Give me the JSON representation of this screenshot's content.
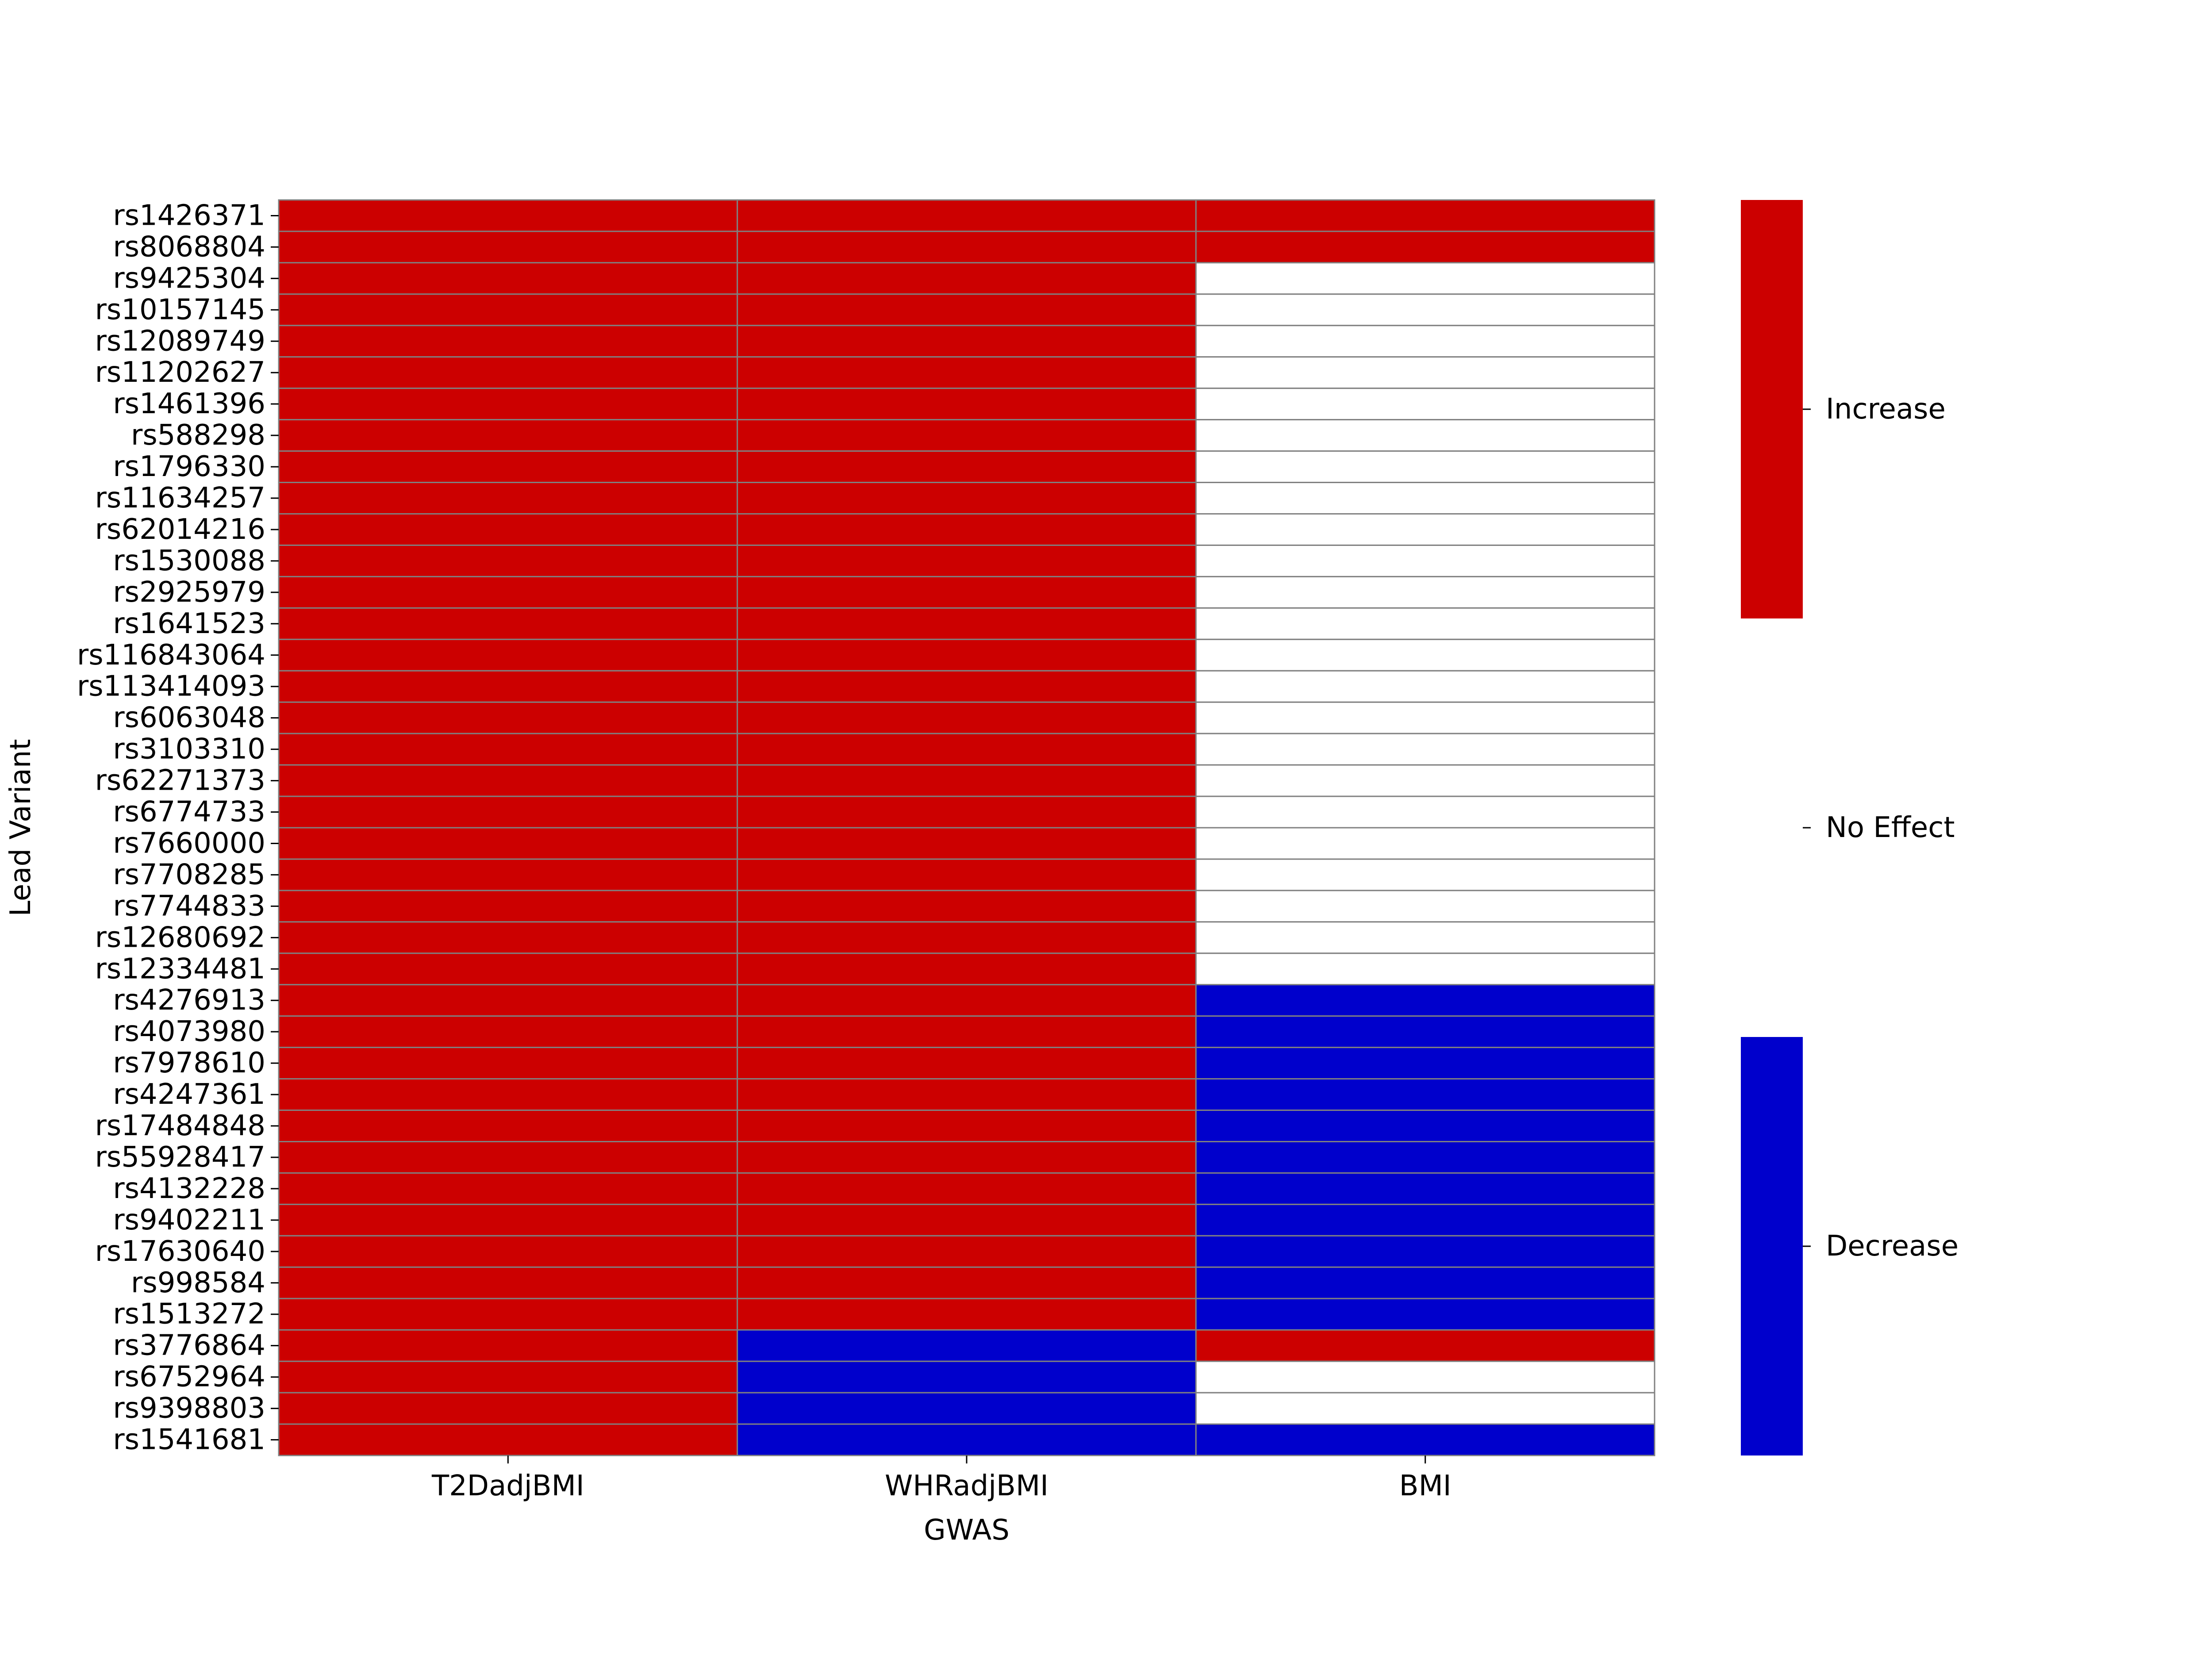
{
  "chart_data": {
    "type": "heatmap",
    "title": "",
    "xlabel": "GWAS",
    "ylabel": "Lead Variant",
    "columns": [
      "T2DadjBMI",
      "WHRadjBMI",
      "BMI"
    ],
    "rows": [
      "rs1426371",
      "rs8068804",
      "rs9425304",
      "rs10157145",
      "rs12089749",
      "rs11202627",
      "rs1461396",
      "rs588298",
      "rs1796330",
      "rs11634257",
      "rs62014216",
      "rs1530088",
      "rs2925979",
      "rs1641523",
      "rs116843064",
      "rs113414093",
      "rs6063048",
      "rs3103310",
      "rs62271373",
      "rs6774733",
      "rs7660000",
      "rs7708285",
      "rs7744833",
      "rs12680692",
      "rs12334481",
      "rs4276913",
      "rs4073980",
      "rs7978610",
      "rs4247361",
      "rs17484848",
      "rs55928417",
      "rs4132228",
      "rs9402211",
      "rs17630640",
      "rs998584",
      "rs1513272",
      "rs3776864",
      "rs6752964",
      "rs9398803",
      "rs1541681"
    ],
    "values": [
      [
        1,
        1,
        1
      ],
      [
        1,
        1,
        1
      ],
      [
        1,
        1,
        0
      ],
      [
        1,
        1,
        0
      ],
      [
        1,
        1,
        0
      ],
      [
        1,
        1,
        0
      ],
      [
        1,
        1,
        0
      ],
      [
        1,
        1,
        0
      ],
      [
        1,
        1,
        0
      ],
      [
        1,
        1,
        0
      ],
      [
        1,
        1,
        0
      ],
      [
        1,
        1,
        0
      ],
      [
        1,
        1,
        0
      ],
      [
        1,
        1,
        0
      ],
      [
        1,
        1,
        0
      ],
      [
        1,
        1,
        0
      ],
      [
        1,
        1,
        0
      ],
      [
        1,
        1,
        0
      ],
      [
        1,
        1,
        0
      ],
      [
        1,
        1,
        0
      ],
      [
        1,
        1,
        0
      ],
      [
        1,
        1,
        0
      ],
      [
        1,
        1,
        0
      ],
      [
        1,
        1,
        0
      ],
      [
        1,
        1,
        0
      ],
      [
        1,
        1,
        -1
      ],
      [
        1,
        1,
        -1
      ],
      [
        1,
        1,
        -1
      ],
      [
        1,
        1,
        -1
      ],
      [
        1,
        1,
        -1
      ],
      [
        1,
        1,
        -1
      ],
      [
        1,
        1,
        -1
      ],
      [
        1,
        1,
        -1
      ],
      [
        1,
        1,
        -1
      ],
      [
        1,
        1,
        -1
      ],
      [
        1,
        1,
        -1
      ],
      [
        1,
        -1,
        1
      ],
      [
        1,
        -1,
        0
      ],
      [
        1,
        -1,
        0
      ],
      [
        1,
        -1,
        -1
      ]
    ],
    "colorbar": {
      "ticks": [
        {
          "value": 1,
          "label": "Increase",
          "color": "#cc0000"
        },
        {
          "value": 0,
          "label": "No Effect",
          "color": "#ffffff"
        },
        {
          "value": -1,
          "label": "Decrease",
          "color": "#0000cc"
        }
      ]
    },
    "grid_line_color": "#808080"
  }
}
